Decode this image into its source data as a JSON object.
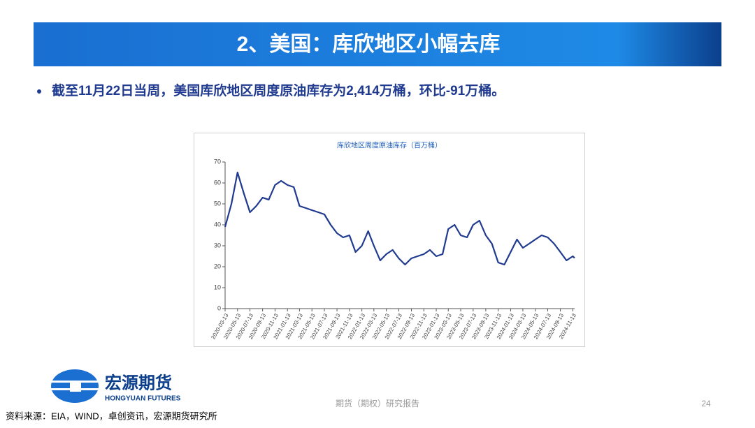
{
  "slide": {
    "heading": "2、美国：库欣地区小幅去库",
    "bullet": "截至11月22日当周，美国库欣地区周度原油库存为2,414万桶，环比-91万桶。",
    "logo_cn": "宏源期货",
    "logo_en": "HONGYUAN FUTURES",
    "footer": "期货（期权）研究报告",
    "page": "24",
    "source": "资料来源：EIA，WIND，卓创资讯，宏源期货研究所"
  },
  "chart_data": {
    "type": "line",
    "title": "库欣地区周度原油库存（百万桶）",
    "color": "#1f3a8f",
    "x": [
      "2020-03-13",
      "2020-04-13",
      "2020-05-13",
      "2020-06-13",
      "2020-07-13",
      "2020-08-13",
      "2020-09-13",
      "2020-10-13",
      "2020-11-13",
      "2020-12-13",
      "2021-01-13",
      "2021-02-13",
      "2021-03-13",
      "2021-04-13",
      "2021-05-13",
      "2021-06-13",
      "2021-07-13",
      "2021-08-13",
      "2021-09-13",
      "2021-10-13",
      "2021-11-13",
      "2021-12-13",
      "2022-01-13",
      "2022-02-13",
      "2022-03-13",
      "2022-04-13",
      "2022-05-13",
      "2022-06-13",
      "2022-07-13",
      "2022-08-13",
      "2022-09-13",
      "2022-10-13",
      "2022-11-13",
      "2022-12-13",
      "2023-01-13",
      "2023-02-13",
      "2023-03-13",
      "2023-04-13",
      "2023-05-13",
      "2023-06-13",
      "2023-07-13",
      "2023-08-13",
      "2023-09-13",
      "2023-10-13",
      "2023-11-13",
      "2023-12-13",
      "2024-01-13",
      "2024-02-13",
      "2024-03-13",
      "2024-04-13",
      "2024-05-13",
      "2024-06-13",
      "2024-07-13",
      "2024-08-13",
      "2024-09-13",
      "2024-10-13",
      "2024-11-13",
      "2024-11-22"
    ],
    "values": [
      39,
      50,
      65,
      55,
      46,
      49,
      53,
      52,
      59,
      61,
      59,
      58,
      49,
      48,
      47,
      46,
      45,
      40,
      36,
      34,
      35,
      27,
      30,
      37,
      30,
      23,
      26,
      28,
      24,
      21,
      24,
      25,
      26,
      28,
      25,
      26,
      38,
      40,
      35,
      34,
      40,
      42,
      35,
      31,
      22,
      21,
      27,
      33,
      29,
      31,
      33,
      35,
      34,
      31,
      27,
      23,
      25,
      24.14
    ],
    "xlim": [
      "2020-03-13",
      "2024-11-22"
    ],
    "xticks": [
      "2020-03-13",
      "2020-05-13",
      "2020-07-13",
      "2020-09-13",
      "2020-11-13",
      "2021-01-13",
      "2021-03-13",
      "2021-05-13",
      "2021-07-13",
      "2021-09-13",
      "2021-11-13",
      "2022-01-13",
      "2022-03-13",
      "2022-05-13",
      "2022-07-13",
      "2022-09-13",
      "2022-11-13",
      "2023-01-13",
      "2023-03-13",
      "2023-05-13",
      "2023-07-13",
      "2023-09-13",
      "2023-11-13",
      "2024-01-13",
      "2024-03-13",
      "2024-05-13",
      "2024-07-13",
      "2024-09-13",
      "2024-11-13"
    ],
    "ylim": [
      0,
      70
    ],
    "yticks": [
      0,
      10,
      20,
      30,
      40,
      50,
      60,
      70
    ],
    "grid": false
  }
}
